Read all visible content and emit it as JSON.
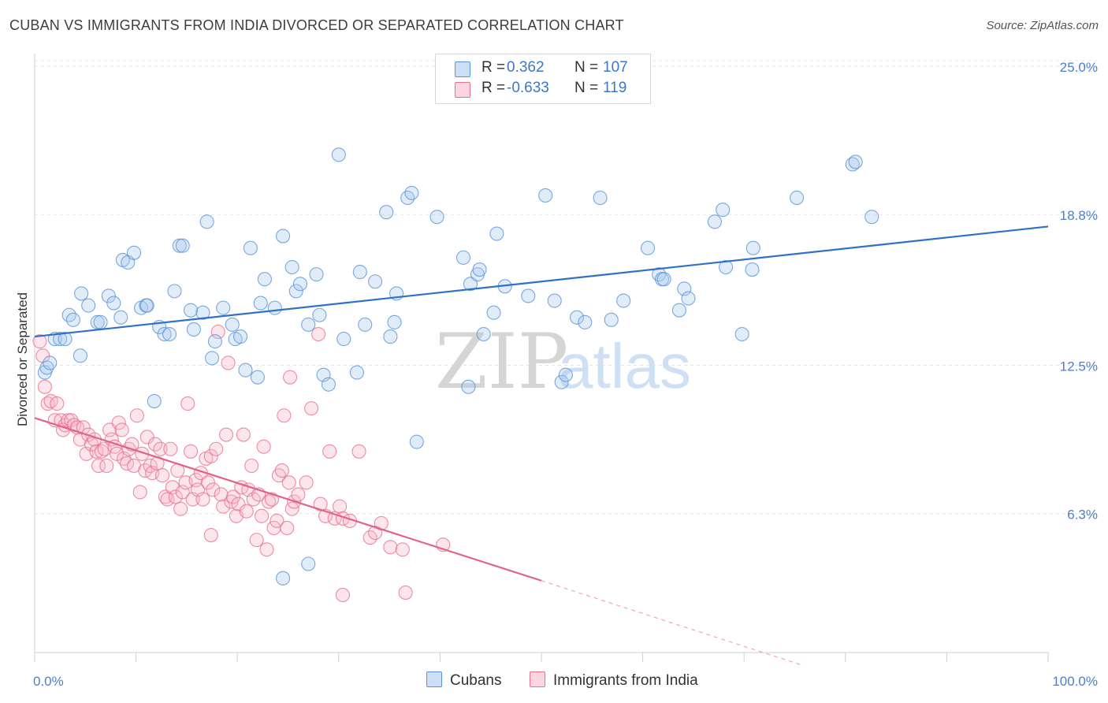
{
  "title": "CUBAN VS IMMIGRANTS FROM INDIA DIVORCED OR SEPARATED CORRELATION CHART",
  "source": "Source: ZipAtlas.com",
  "watermark": {
    "zip": "ZIP",
    "atlas": "atlas"
  },
  "legend": {
    "rows": [
      {
        "r_label": "R =",
        "r_value": "0.362",
        "n_label": "N =",
        "n_value": "107",
        "color": "#a9c8ef"
      },
      {
        "r_label": "R =",
        "r_value": "-0.633",
        "n_label": "N =",
        "n_value": "119",
        "color": "#f5b8c9"
      }
    ]
  },
  "bottom_legend": [
    "Cubans",
    "Immigrants from India"
  ],
  "chart_data": {
    "type": "scatter",
    "title": "CUBAN VS IMMIGRANTS FROM INDIA DIVORCED OR SEPARATED CORRELATION CHART",
    "xlabel": "",
    "ylabel": "Divorced or Separated",
    "xlim": [
      0,
      100
    ],
    "ylim": [
      0,
      26.2
    ],
    "x_tick_labels": [
      "0.0%",
      "100.0%"
    ],
    "y_ticks": [
      6.3,
      12.5,
      18.8,
      25.0
    ],
    "y_tick_labels": [
      "6.3%",
      "12.5%",
      "18.8%",
      "25.0%"
    ],
    "grid": "horizontal dashed",
    "legend_position": "top-center",
    "colors": {
      "cubans": "#5b93d6",
      "cubans_fill": "#a9c8ef",
      "india": "#e8708f",
      "india_fill": "#f5b8c9"
    },
    "series": [
      {
        "name": "Cubans",
        "r": 0.362,
        "n": 107,
        "trend": {
          "x": [
            0,
            100
          ],
          "y": [
            13.7,
            18.3
          ]
        },
        "points": [
          [
            1,
            12.2
          ],
          [
            1.2,
            12.4
          ],
          [
            1.5,
            12.6
          ],
          [
            2,
            13.6
          ],
          [
            2.5,
            13.6
          ],
          [
            3,
            13.6
          ],
          [
            3.4,
            14.6
          ],
          [
            3.8,
            14.4
          ],
          [
            4.5,
            12.9
          ],
          [
            4.6,
            15.5
          ],
          [
            5.3,
            15.0
          ],
          [
            6.2,
            14.3
          ],
          [
            6.5,
            14.3
          ],
          [
            7.3,
            15.4
          ],
          [
            7.8,
            15.1
          ],
          [
            8.5,
            14.5
          ],
          [
            8.7,
            16.9
          ],
          [
            9.2,
            16.8
          ],
          [
            9.8,
            17.2
          ],
          [
            10.5,
            14.9
          ],
          [
            11.0,
            15.0
          ],
          [
            11.1,
            15.0
          ],
          [
            11.8,
            11.0
          ],
          [
            12.3,
            14.1
          ],
          [
            12.8,
            13.8
          ],
          [
            13.3,
            13.8
          ],
          [
            13.8,
            15.6
          ],
          [
            14.3,
            17.5
          ],
          [
            14.6,
            17.5
          ],
          [
            15.4,
            14.8
          ],
          [
            15.7,
            14.0
          ],
          [
            16.6,
            14.7
          ],
          [
            17.0,
            18.5
          ],
          [
            17.5,
            12.8
          ],
          [
            17.8,
            13.5
          ],
          [
            18.6,
            14.9
          ],
          [
            19.5,
            14.2
          ],
          [
            19.8,
            13.6
          ],
          [
            20.3,
            13.7
          ],
          [
            20.8,
            12.3
          ],
          [
            21.3,
            17.4
          ],
          [
            22.0,
            12.0
          ],
          [
            22.3,
            15.1
          ],
          [
            22.7,
            16.1
          ],
          [
            23.7,
            14.9
          ],
          [
            24.5,
            17.9
          ],
          [
            25.4,
            16.6
          ],
          [
            25.8,
            15.6
          ],
          [
            26.2,
            15.9
          ],
          [
            27.0,
            14.2
          ],
          [
            27.8,
            16.3
          ],
          [
            28.1,
            14.6
          ],
          [
            28.5,
            12.1
          ],
          [
            29.0,
            11.7
          ],
          [
            30.0,
            21.3
          ],
          [
            30.5,
            13.6
          ],
          [
            31.8,
            12.2
          ],
          [
            32.1,
            16.4
          ],
          [
            32.6,
            14.2
          ],
          [
            33.6,
            16.0
          ],
          [
            34.7,
            18.9
          ],
          [
            35.1,
            13.7
          ],
          [
            35.5,
            14.3
          ],
          [
            35.7,
            15.5
          ],
          [
            36.8,
            19.5
          ],
          [
            37.2,
            19.7
          ],
          [
            37.7,
            9.3
          ],
          [
            39.7,
            18.7
          ],
          [
            42.3,
            17.0
          ],
          [
            42.8,
            11.6
          ],
          [
            43.0,
            15.9
          ],
          [
            43.7,
            16.3
          ],
          [
            43.9,
            16.5
          ],
          [
            44.3,
            13.8
          ],
          [
            45.3,
            14.7
          ],
          [
            45.6,
            18.0
          ],
          [
            46.4,
            15.8
          ],
          [
            48.7,
            15.4
          ],
          [
            50.4,
            19.6
          ],
          [
            51.3,
            15.2
          ],
          [
            52.0,
            11.8
          ],
          [
            52.4,
            12.1
          ],
          [
            53.5,
            14.5
          ],
          [
            54.3,
            14.3
          ],
          [
            55.8,
            19.5
          ],
          [
            56.9,
            14.4
          ],
          [
            58.1,
            15.2
          ],
          [
            60.5,
            17.4
          ],
          [
            61.6,
            16.3
          ],
          [
            61.9,
            16.1
          ],
          [
            62.1,
            16.1
          ],
          [
            63.6,
            14.8
          ],
          [
            64.1,
            15.7
          ],
          [
            64.5,
            15.3
          ],
          [
            67.1,
            18.5
          ],
          [
            67.9,
            19.0
          ],
          [
            68.2,
            16.6
          ],
          [
            69.8,
            13.8
          ],
          [
            70.8,
            16.5
          ],
          [
            70.9,
            17.4
          ],
          [
            75.2,
            19.5
          ],
          [
            80.7,
            20.9
          ],
          [
            81.0,
            21.0
          ],
          [
            82.6,
            18.7
          ],
          [
            27.0,
            4.2
          ],
          [
            24.5,
            3.6
          ]
        ]
      },
      {
        "name": "Immigrants from India",
        "r": -0.633,
        "n": 119,
        "trend": {
          "x": [
            0,
            50
          ],
          "y": [
            10.3,
            3.5
          ]
        },
        "trend_dashed": {
          "x": [
            50,
            75.5
          ],
          "y": [
            3.5,
            0.0
          ]
        },
        "points": [
          [
            0.5,
            13.5
          ],
          [
            0.8,
            12.9
          ],
          [
            1.0,
            11.6
          ],
          [
            1.3,
            10.9
          ],
          [
            1.6,
            11.0
          ],
          [
            2.0,
            10.2
          ],
          [
            2.2,
            10.9
          ],
          [
            2.6,
            10.2
          ],
          [
            2.8,
            9.8
          ],
          [
            3.0,
            10.0
          ],
          [
            3.3,
            10.2
          ],
          [
            3.6,
            10.2
          ],
          [
            3.9,
            10.0
          ],
          [
            4.2,
            9.9
          ],
          [
            4.5,
            9.4
          ],
          [
            4.8,
            9.9
          ],
          [
            5.1,
            8.8
          ],
          [
            5.3,
            9.6
          ],
          [
            5.6,
            9.2
          ],
          [
            5.9,
            9.4
          ],
          [
            6.1,
            8.9
          ],
          [
            6.3,
            8.3
          ],
          [
            6.6,
            8.9
          ],
          [
            6.9,
            9.0
          ],
          [
            7.1,
            8.3
          ],
          [
            7.4,
            9.8
          ],
          [
            7.6,
            9.4
          ],
          [
            7.9,
            9.1
          ],
          [
            8.1,
            8.8
          ],
          [
            8.3,
            10.1
          ],
          [
            8.6,
            9.8
          ],
          [
            8.8,
            8.6
          ],
          [
            9.1,
            8.4
          ],
          [
            9.3,
            9.0
          ],
          [
            9.6,
            9.2
          ],
          [
            9.8,
            8.3
          ],
          [
            10.1,
            10.4
          ],
          [
            10.4,
            7.2
          ],
          [
            10.6,
            8.8
          ],
          [
            10.9,
            8.1
          ],
          [
            11.1,
            9.5
          ],
          [
            11.4,
            8.3
          ],
          [
            11.6,
            8.0
          ],
          [
            11.9,
            9.2
          ],
          [
            12.1,
            8.4
          ],
          [
            12.4,
            9.0
          ],
          [
            12.6,
            7.9
          ],
          [
            12.9,
            7.0
          ],
          [
            13.1,
            6.9
          ],
          [
            13.4,
            9.0
          ],
          [
            13.6,
            7.4
          ],
          [
            13.9,
            7.0
          ],
          [
            14.1,
            8.1
          ],
          [
            14.4,
            6.5
          ],
          [
            14.6,
            7.2
          ],
          [
            14.9,
            7.6
          ],
          [
            15.1,
            10.9
          ],
          [
            15.4,
            8.9
          ],
          [
            15.6,
            6.9
          ],
          [
            15.9,
            7.7
          ],
          [
            16.1,
            7.3
          ],
          [
            16.4,
            8.0
          ],
          [
            16.6,
            6.9
          ],
          [
            16.9,
            8.6
          ],
          [
            17.1,
            7.6
          ],
          [
            17.4,
            8.7
          ],
          [
            17.6,
            7.3
          ],
          [
            17.9,
            9.0
          ],
          [
            18.1,
            13.9
          ],
          [
            18.4,
            7.1
          ],
          [
            18.6,
            6.6
          ],
          [
            18.9,
            9.6
          ],
          [
            19.1,
            12.6
          ],
          [
            19.4,
            6.8
          ],
          [
            19.6,
            7.0
          ],
          [
            19.9,
            6.2
          ],
          [
            20.1,
            6.7
          ],
          [
            20.4,
            7.4
          ],
          [
            20.6,
            9.6
          ],
          [
            20.9,
            6.4
          ],
          [
            21.1,
            7.3
          ],
          [
            21.4,
            8.3
          ],
          [
            21.6,
            6.9
          ],
          [
            21.9,
            5.2
          ],
          [
            22.1,
            7.1
          ],
          [
            22.4,
            6.2
          ],
          [
            22.6,
            9.1
          ],
          [
            22.9,
            4.8
          ],
          [
            23.1,
            6.8
          ],
          [
            23.4,
            6.9
          ],
          [
            23.6,
            5.7
          ],
          [
            23.9,
            6.0
          ],
          [
            24.1,
            7.9
          ],
          [
            24.4,
            8.1
          ],
          [
            24.6,
            10.4
          ],
          [
            24.9,
            5.7
          ],
          [
            25.1,
            7.6
          ],
          [
            25.4,
            6.5
          ],
          [
            25.6,
            6.8
          ],
          [
            26.0,
            7.1
          ],
          [
            26.8,
            7.6
          ],
          [
            27.3,
            10.7
          ],
          [
            28.2,
            6.7
          ],
          [
            28.7,
            6.2
          ],
          [
            29.1,
            8.9
          ],
          [
            29.6,
            6.1
          ],
          [
            30.1,
            6.6
          ],
          [
            30.4,
            6.1
          ],
          [
            31.1,
            6.0
          ],
          [
            32.0,
            8.9
          ],
          [
            33.1,
            5.3
          ],
          [
            33.6,
            5.5
          ],
          [
            34.2,
            5.9
          ],
          [
            35.1,
            4.9
          ],
          [
            36.3,
            4.8
          ],
          [
            36.6,
            3.0
          ],
          [
            40.3,
            5.0
          ],
          [
            30.4,
            2.9
          ],
          [
            28.0,
            13.8
          ],
          [
            25.2,
            12.0
          ],
          [
            17.4,
            5.4
          ]
        ]
      }
    ]
  }
}
